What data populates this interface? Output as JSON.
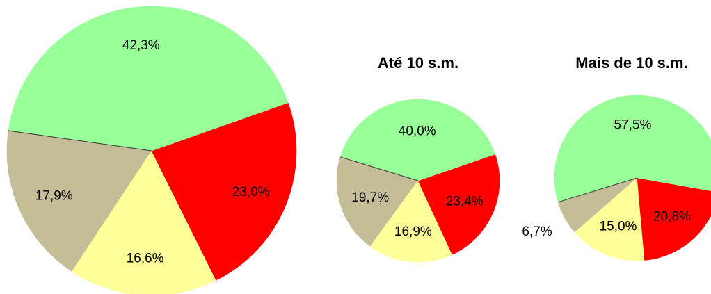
{
  "chart_data": [
    {
      "type": "pie",
      "title": "",
      "slices": [
        {
          "value": 42.3,
          "label": "42,3%",
          "color": "#99FF99"
        },
        {
          "value": 23.0,
          "label": "23,0%",
          "color": "#FF0000"
        },
        {
          "value": 16.6,
          "label": "16,6%",
          "color": "#FFFF99"
        },
        {
          "value": 17.9,
          "label": "17,9%",
          "color": "#C4BD97"
        }
      ]
    },
    {
      "type": "pie",
      "title": "Até 10 s.m.",
      "slices": [
        {
          "value": 40.0,
          "label": "40,0%",
          "color": "#99FF99"
        },
        {
          "value": 23.4,
          "label": "23,4%",
          "color": "#FF0000"
        },
        {
          "value": 16.9,
          "label": "16,9%",
          "color": "#FFFF99"
        },
        {
          "value": 19.7,
          "label": "19,7%",
          "color": "#C4BD97"
        }
      ]
    },
    {
      "type": "pie",
      "title": "Mais de 10 s.m.",
      "slices": [
        {
          "value": 57.5,
          "label": "57,5%",
          "color": "#99FF99"
        },
        {
          "value": 20.8,
          "label": "20,8%",
          "color": "#FF0000"
        },
        {
          "value": 15.0,
          "label": "15,0%",
          "color": "#FFFF99"
        },
        {
          "value": 6.7,
          "label": "6,7%",
          "color": "#C4BD97"
        }
      ]
    }
  ]
}
